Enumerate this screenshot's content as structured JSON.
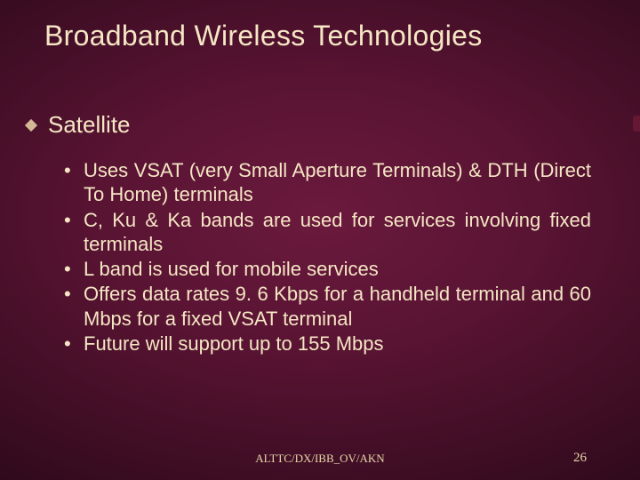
{
  "slide": {
    "title": "Broadband Wireless Technologies",
    "subhead": "Satellite",
    "bullets": [
      {
        "text": "Uses VSAT (very Small Aperture Terminals) & DTH (Direct To Home) terminals",
        "justify": true
      },
      {
        "text": "C, Ku & Ka bands are used for services involving fixed terminals",
        "justify": true
      },
      {
        "text": "L band is used for mobile services",
        "justify": false
      },
      {
        "text": "Offers data rates 9. 6 Kbps for a handheld terminal and 60 Mbps for a fixed VSAT terminal",
        "justify": true
      },
      {
        "text": "Future will support up to 155 Mbps",
        "justify": false
      }
    ],
    "footer_center": "ALTTC/DX/IBB_OV/AKN",
    "footer_page": "26"
  },
  "style": {
    "background_center": "#6b1a3d",
    "background_edge": "#1a0410",
    "text_color": "#f5e6c4",
    "bullet_color": "#d4b896",
    "title_fontsize": 32,
    "subhead_fontsize": 26,
    "body_fontsize": 22,
    "footer_fontsize": 13
  }
}
